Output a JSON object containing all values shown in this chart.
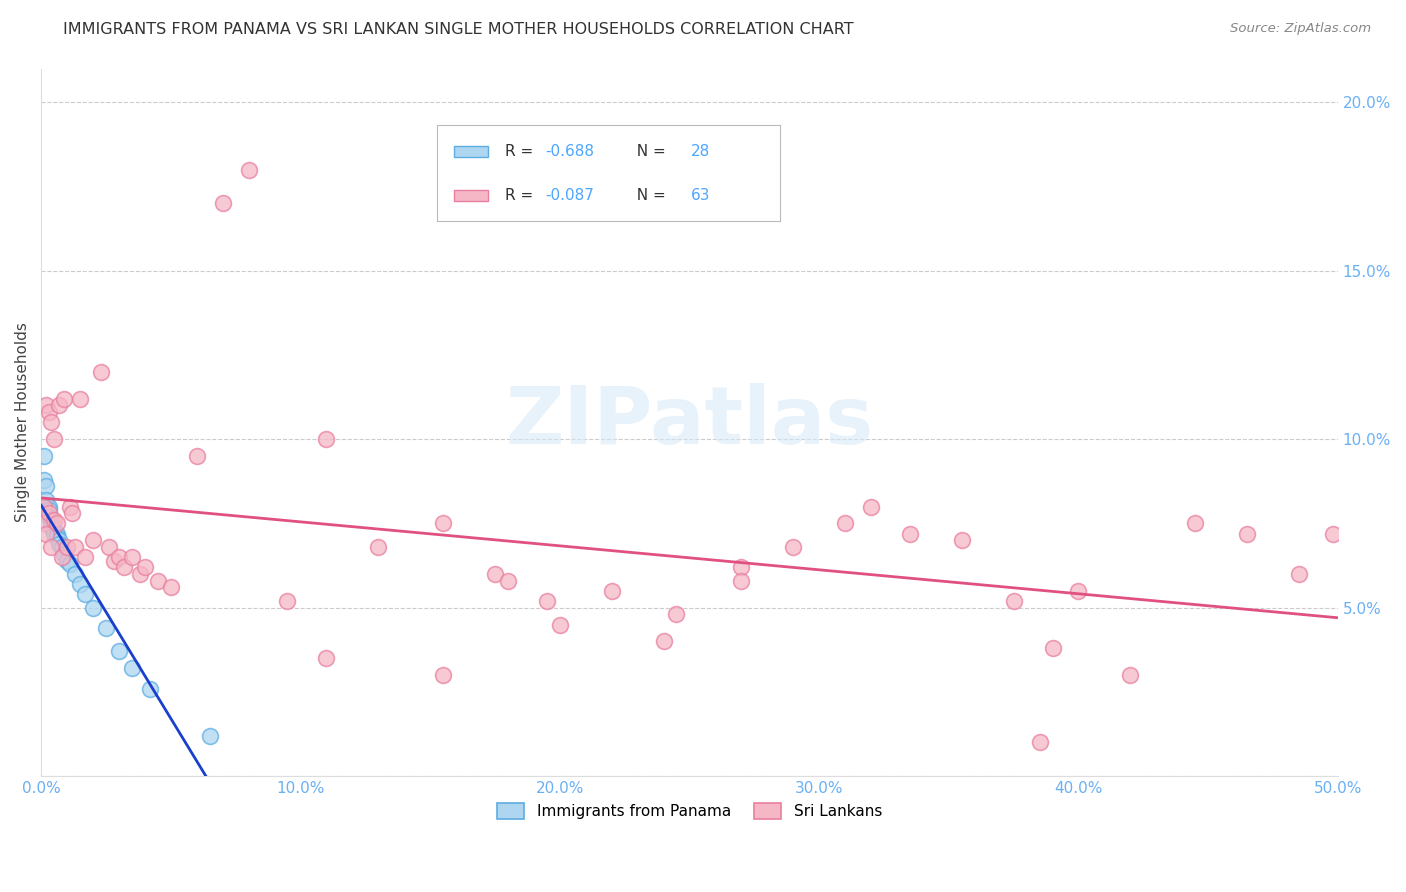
{
  "title": "IMMIGRANTS FROM PANAMA VS SRI LANKAN SINGLE MOTHER HOUSEHOLDS CORRELATION CHART",
  "source": "Source: ZipAtlas.com",
  "ylabel": "Single Mother Households",
  "xlim": [
    0,
    0.5
  ],
  "ylim": [
    0,
    0.21
  ],
  "x_ticks": [
    0.0,
    0.1,
    0.2,
    0.3,
    0.4,
    0.5
  ],
  "x_tick_labels": [
    "0.0%",
    "10.0%",
    "20.0%",
    "30.0%",
    "40.0%",
    "50.0%"
  ],
  "y_ticks": [
    0.05,
    0.1,
    0.15,
    0.2
  ],
  "y_tick_labels": [
    "5.0%",
    "10.0%",
    "15.0%",
    "20.0%"
  ],
  "tick_color": "#6ab0f5",
  "panama_face_color": "#aed6f1",
  "panama_edge_color": "#5dade2",
  "sri_face_color": "#f5b7c5",
  "sri_edge_color": "#e87fa0",
  "panama_line_color": "#1a3fcc",
  "sri_lanka_line_color": "#e05080",
  "legend_r_panama": "-0.688",
  "legend_n_panama": "28",
  "legend_r_sri": "-0.087",
  "legend_n_sri": "63",
  "watermark": "ZIPatlas",
  "panama_label": "Immigrants from Panama",
  "sri_label": "Sri Lankans",
  "panama_x": [
    0.001,
    0.001,
    0.002,
    0.002,
    0.003,
    0.003,
    0.003,
    0.004,
    0.004,
    0.005,
    0.005,
    0.006,
    0.006,
    0.007,
    0.007,
    0.008,
    0.009,
    0.01,
    0.011,
    0.013,
    0.015,
    0.017,
    0.02,
    0.025,
    0.03,
    0.035,
    0.042,
    0.065
  ],
  "panama_y": [
    0.095,
    0.088,
    0.086,
    0.082,
    0.08,
    0.079,
    0.077,
    0.076,
    0.074,
    0.073,
    0.072,
    0.072,
    0.071,
    0.07,
    0.069,
    0.068,
    0.066,
    0.064,
    0.063,
    0.06,
    0.057,
    0.054,
    0.05,
    0.044,
    0.037,
    0.032,
    0.026,
    0.012
  ],
  "sri_x": [
    0.001,
    0.001,
    0.002,
    0.002,
    0.003,
    0.003,
    0.004,
    0.004,
    0.005,
    0.005,
    0.006,
    0.007,
    0.008,
    0.009,
    0.01,
    0.011,
    0.012,
    0.013,
    0.015,
    0.017,
    0.02,
    0.023,
    0.026,
    0.028,
    0.03,
    0.032,
    0.035,
    0.038,
    0.04,
    0.045,
    0.05,
    0.06,
    0.07,
    0.08,
    0.095,
    0.11,
    0.13,
    0.155,
    0.175,
    0.2,
    0.22,
    0.245,
    0.27,
    0.29,
    0.31,
    0.335,
    0.355,
    0.375,
    0.4,
    0.42,
    0.445,
    0.465,
    0.485,
    0.498,
    0.18,
    0.24,
    0.32,
    0.39,
    0.11,
    0.195,
    0.27,
    0.385,
    0.155
  ],
  "sri_y": [
    0.08,
    0.075,
    0.11,
    0.072,
    0.108,
    0.078,
    0.105,
    0.068,
    0.1,
    0.076,
    0.075,
    0.11,
    0.065,
    0.112,
    0.068,
    0.08,
    0.078,
    0.068,
    0.112,
    0.065,
    0.07,
    0.12,
    0.068,
    0.064,
    0.065,
    0.062,
    0.065,
    0.06,
    0.062,
    0.058,
    0.056,
    0.095,
    0.17,
    0.18,
    0.052,
    0.1,
    0.068,
    0.075,
    0.06,
    0.045,
    0.055,
    0.048,
    0.062,
    0.068,
    0.075,
    0.072,
    0.07,
    0.052,
    0.055,
    0.03,
    0.075,
    0.072,
    0.06,
    0.072,
    0.058,
    0.04,
    0.08,
    0.038,
    0.035,
    0.052,
    0.058,
    0.01,
    0.03
  ]
}
